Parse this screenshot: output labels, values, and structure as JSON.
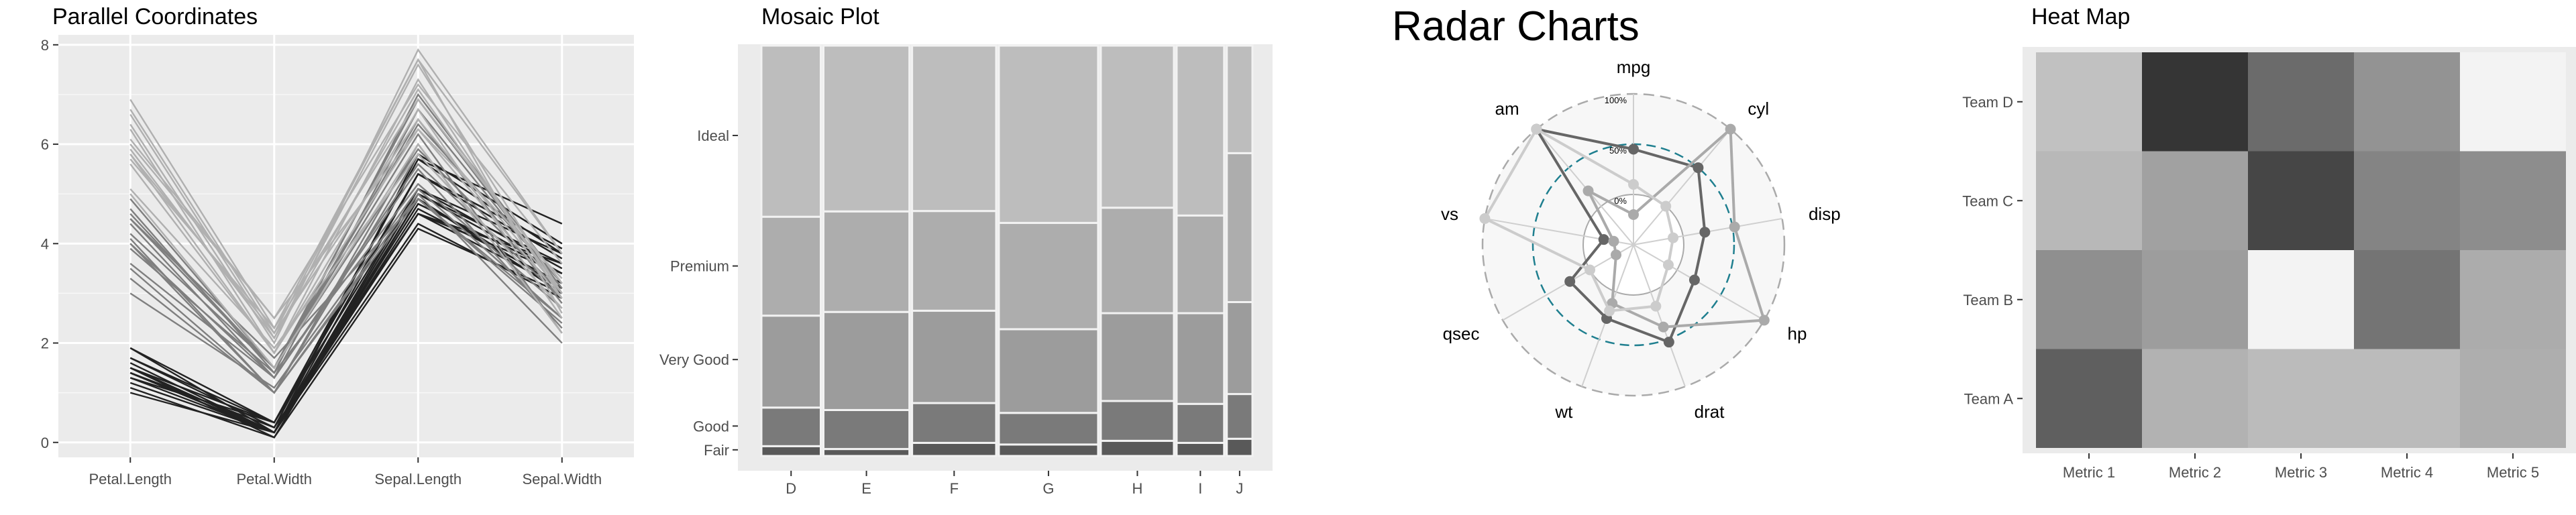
{
  "chart_data": [
    {
      "type": "line",
      "title": "Parallel Coordinates",
      "categories": [
        "Petal.Length",
        "Petal.Width",
        "Sepal.Length",
        "Sepal.Width"
      ],
      "ylim": [
        -0.3,
        8.2
      ],
      "yticks": [
        0,
        2,
        4,
        6,
        8
      ],
      "grid": true,
      "series": [
        {
          "values": [
            1.4,
            0.2,
            5.1,
            3.5
          ]
        },
        {
          "values": [
            1.4,
            0.2,
            4.9,
            3.0
          ]
        },
        {
          "values": [
            1.3,
            0.2,
            4.7,
            3.2
          ]
        },
        {
          "values": [
            1.5,
            0.2,
            4.6,
            3.1
          ]
        },
        {
          "values": [
            1.4,
            0.2,
            5.0,
            3.6
          ]
        },
        {
          "values": [
            1.7,
            0.4,
            5.4,
            3.9
          ]
        },
        {
          "values": [
            1.4,
            0.3,
            4.6,
            3.4
          ]
        },
        {
          "values": [
            1.5,
            0.2,
            5.0,
            3.4
          ]
        },
        {
          "values": [
            1.4,
            0.2,
            4.4,
            2.9
          ]
        },
        {
          "values": [
            1.5,
            0.1,
            4.9,
            3.1
          ]
        },
        {
          "values": [
            1.5,
            0.2,
            5.4,
            3.7
          ]
        },
        {
          "values": [
            1.6,
            0.2,
            4.8,
            3.4
          ]
        },
        {
          "values": [
            1.1,
            0.1,
            4.3,
            3.0
          ]
        },
        {
          "values": [
            1.2,
            0.2,
            5.8,
            4.0
          ]
        },
        {
          "values": [
            1.5,
            0.4,
            5.7,
            4.4
          ]
        },
        {
          "values": [
            1.3,
            0.4,
            5.4,
            3.9
          ]
        },
        {
          "values": [
            1.7,
            0.3,
            5.7,
            3.8
          ]
        },
        {
          "values": [
            1.9,
            0.2,
            4.8,
            3.4
          ]
        },
        {
          "values": [
            1.0,
            0.2,
            4.6,
            3.6
          ]
        },
        {
          "values": [
            1.9,
            0.4,
            5.1,
            3.8
          ]
        },
        {
          "values": [
            4.7,
            1.4,
            7.0,
            3.2
          ]
        },
        {
          "values": [
            4.5,
            1.5,
            6.4,
            3.2
          ]
        },
        {
          "values": [
            4.9,
            1.5,
            6.9,
            3.1
          ]
        },
        {
          "values": [
            4.0,
            1.3,
            5.5,
            2.3
          ]
        },
        {
          "values": [
            4.6,
            1.5,
            6.5,
            2.8
          ]
        },
        {
          "values": [
            3.3,
            1.0,
            4.9,
            2.4
          ]
        },
        {
          "values": [
            3.5,
            1.0,
            5.0,
            2.0
          ]
        },
        {
          "values": [
            4.2,
            1.5,
            5.9,
            3.0
          ]
        },
        {
          "values": [
            4.0,
            1.0,
            6.0,
            2.2
          ]
        },
        {
          "values": [
            3.0,
            1.1,
            5.1,
            2.5
          ]
        },
        {
          "values": [
            3.9,
            1.4,
            5.2,
            2.7
          ]
        },
        {
          "values": [
            4.4,
            1.3,
            6.7,
            3.1
          ]
        },
        {
          "values": [
            4.1,
            1.0,
            5.8,
            2.7
          ]
        },
        {
          "values": [
            3.6,
            1.3,
            5.6,
            2.9
          ]
        },
        {
          "values": [
            4.5,
            1.5,
            6.2,
            2.2
          ]
        },
        {
          "values": [
            6.0,
            2.5,
            6.3,
            3.3
          ]
        },
        {
          "values": [
            5.1,
            1.9,
            5.8,
            2.7
          ]
        },
        {
          "values": [
            5.9,
            2.1,
            7.1,
            3.0
          ]
        },
        {
          "values": [
            5.6,
            1.8,
            6.3,
            2.9
          ]
        },
        {
          "values": [
            5.8,
            2.2,
            6.5,
            3.0
          ]
        },
        {
          "values": [
            6.6,
            2.1,
            7.6,
            3.0
          ]
        },
        {
          "values": [
            4.5,
            1.7,
            4.9,
            2.5
          ]
        },
        {
          "values": [
            6.3,
            1.8,
            7.3,
            2.9
          ]
        },
        {
          "values": [
            5.8,
            1.8,
            6.7,
            2.5
          ]
        },
        {
          "values": [
            6.1,
            2.5,
            7.2,
            3.6
          ]
        },
        {
          "values": [
            6.7,
            2.2,
            7.7,
            3.8
          ]
        },
        {
          "values": [
            6.9,
            2.3,
            7.7,
            2.6
          ]
        },
        {
          "values": [
            5.0,
            1.5,
            6.0,
            2.2
          ]
        },
        {
          "values": [
            5.7,
            2.3,
            6.9,
            3.2
          ]
        },
        {
          "values": [
            6.4,
            2.0,
            7.9,
            3.8
          ]
        }
      ],
      "colors": [
        "#222222",
        "#7f7f7f",
        "#b0b0b0"
      ]
    },
    {
      "type": "mosaic",
      "title": "Mosaic Plot",
      "x_categories": [
        "D",
        "E",
        "F",
        "G",
        "H",
        "I",
        "J"
      ],
      "column_shares": [
        0.125,
        0.181,
        0.177,
        0.209,
        0.154,
        0.1,
        0.054
      ],
      "y_categories": [
        "Fair",
        "Good",
        "Very Good",
        "Premium",
        "Ideal"
      ],
      "y_ticks": [
        {
          "label": "Ideal",
          "value": 0.781
        },
        {
          "label": "Premium",
          "value": 0.463
        },
        {
          "label": "Very Good",
          "value": 0.235
        },
        {
          "label": "Good",
          "value": 0.073
        },
        {
          "label": "Fair",
          "value": 0.015
        }
      ],
      "proportions": [
        [
          0.024,
          0.094,
          0.224,
          0.241,
          0.417
        ],
        [
          0.017,
          0.095,
          0.239,
          0.245,
          0.404
        ],
        [
          0.032,
          0.097,
          0.225,
          0.243,
          0.403
        ],
        [
          0.028,
          0.077,
          0.204,
          0.259,
          0.432
        ],
        [
          0.037,
          0.097,
          0.214,
          0.257,
          0.395
        ],
        [
          0.032,
          0.095,
          0.221,
          0.238,
          0.414
        ],
        [
          0.042,
          0.109,
          0.224,
          0.363,
          0.262
        ]
      ],
      "colors": [
        "#595959",
        "#7a7a7a",
        "#9c9c9c",
        "#adadad",
        "#bdbdbd"
      ]
    },
    {
      "type": "radar",
      "title": "Radar Charts",
      "axes": [
        "mpg",
        "cyl",
        "disp",
        "hp",
        "drat",
        "wt",
        "qsec",
        "vs",
        "am"
      ],
      "rlim": [
        -0.5,
        1.0
      ],
      "grid_labels": [
        "0%",
        "50%",
        "100%"
      ],
      "series": [
        {
          "values": [
            0.45,
            0.5,
            0.22,
            0.2,
            0.53,
            0.28,
            0.23,
            -0.2,
            1.0
          ],
          "color": "#666666"
        },
        {
          "values": [
            -0.2,
            1.0,
            0.52,
            1.0,
            0.37,
            0.12,
            -0.3,
            -0.3,
            0.2
          ],
          "color": "#aaaaaa"
        },
        {
          "values": [
            0.1,
            0.0,
            -0.1,
            -0.1,
            0.15,
            0.2,
            0.0,
            1.0,
            1.0
          ],
          "color": "#cccccc"
        }
      ]
    },
    {
      "type": "heatmap",
      "title": "Heat Map",
      "x_categories": [
        "Metric 1",
        "Metric 2",
        "Metric 3",
        "Metric 4",
        "Metric 5"
      ],
      "y_categories": [
        "Team A",
        "Team B",
        "Team C",
        "Team D"
      ],
      "values": [
        [
          0.71,
          0.31,
          0.27,
          0.27,
          0.33
        ],
        [
          0.48,
          0.41,
          0.0,
          0.61,
          0.34
        ],
        [
          0.28,
          0.39,
          0.83,
          0.53,
          0.49
        ],
        [
          0.24,
          0.91,
          0.65,
          0.46,
          0.0
        ]
      ]
    }
  ]
}
